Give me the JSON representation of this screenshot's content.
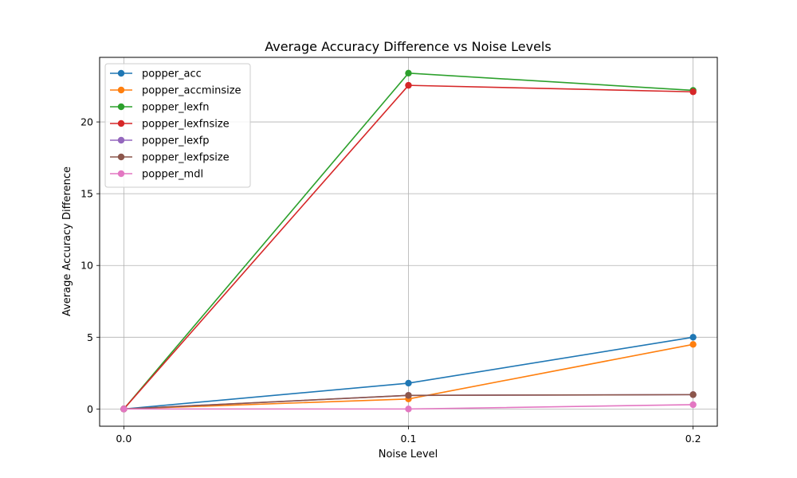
{
  "chart_data": {
    "type": "line",
    "title": "Average Accuracy Difference vs Noise Levels",
    "xlabel": "Noise Level",
    "ylabel": "Average Accuracy Difference",
    "x": [
      0.0,
      0.1,
      0.2
    ],
    "x_tick_labels": [
      "0.0",
      "0.1",
      "0.2"
    ],
    "y_ticks": [
      0,
      5,
      10,
      15,
      20
    ],
    "y_tick_labels": [
      "0",
      "5",
      "10",
      "15",
      "20"
    ],
    "xlim": [
      -0.0085,
      0.2085
    ],
    "ylim": [
      -1.2,
      24.5
    ],
    "grid": true,
    "legend_position": "upper-left",
    "markers": true,
    "series": [
      {
        "name": "popper_acc",
        "color": "#1f77b4",
        "values": [
          0.0,
          1.8,
          5.0
        ]
      },
      {
        "name": "popper_accminsize",
        "color": "#ff7f0e",
        "values": [
          0.0,
          0.7,
          4.5
        ]
      },
      {
        "name": "popper_lexfn",
        "color": "#2ca02c",
        "values": [
          0.0,
          23.4,
          22.2
        ]
      },
      {
        "name": "popper_lexfnsize",
        "color": "#d62728",
        "values": [
          0.0,
          22.55,
          22.1
        ]
      },
      {
        "name": "popper_lexfp",
        "color": "#9467bd",
        "values": [
          0.0,
          0.95,
          1.0
        ]
      },
      {
        "name": "popper_lexfpsize",
        "color": "#8c564b",
        "values": [
          0.0,
          0.95,
          1.0
        ]
      },
      {
        "name": "popper_mdl",
        "color": "#e377c2",
        "values": [
          0.0,
          0.0,
          0.3
        ]
      }
    ]
  }
}
